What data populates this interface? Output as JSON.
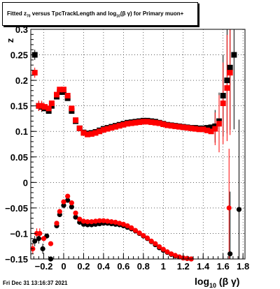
{
  "title": {
    "prefix": "Fitted  z",
    "sub1": "70",
    "middle": "  versus TpcTrackLength and log",
    "sub2": "10",
    "suffix": "(β  γ) for Primary muon+"
  },
  "footer": "Fri Dec 31 13:16:37 2021",
  "chart_data": {
    "type": "scatter",
    "title": "Fitted z70 versus TpcTrackLength and log10(β γ) for Primary muon+",
    "xlabel": "log10(β γ)",
    "ylabel": "z",
    "xlim": [
      -0.33,
      1.82
    ],
    "ylim": [
      -0.15,
      0.3
    ],
    "grid": true,
    "x_ticks": [
      -0.2,
      0,
      0.2,
      0.4,
      0.6,
      0.8,
      1,
      1.2,
      1.4,
      1.6,
      1.8
    ],
    "x_tick_labels": [
      "−0.2",
      "0",
      "0.2",
      "0.4",
      "0.6",
      "0.8",
      "1",
      "1.2",
      "1.4",
      "1.6",
      "1.8"
    ],
    "y_ticks": [
      -0.15,
      -0.1,
      -0.05,
      0,
      0.05,
      0.1,
      0.15,
      0.2,
      0.25,
      0.3
    ],
    "y_tick_labels": [
      "−0.15",
      "−0.1",
      "−0.05",
      "0",
      "0.05",
      "0.1",
      "0.15",
      "0.2",
      "0.25",
      "0.3"
    ],
    "series": [
      {
        "marker": "square",
        "color": "#000000",
        "points": [
          [
            -0.29,
            0.25
          ],
          [
            -0.25,
            0.15
          ],
          [
            -0.22,
            0.148
          ],
          [
            -0.19,
            0.145
          ],
          [
            -0.15,
            0.14
          ],
          [
            -0.12,
            0.15
          ],
          [
            -0.07,
            0.168
          ],
          [
            -0.04,
            0.177
          ],
          [
            0.0,
            0.177
          ],
          [
            0.04,
            0.165
          ],
          [
            0.08,
            0.14
          ],
          [
            0.12,
            0.12
          ],
          [
            0.16,
            0.106
          ],
          [
            0.2,
            0.098
          ],
          [
            0.24,
            0.096
          ],
          [
            0.28,
            0.097
          ],
          [
            0.32,
            0.099
          ],
          [
            0.36,
            0.102
          ],
          [
            0.4,
            0.105
          ],
          [
            0.44,
            0.107
          ],
          [
            0.48,
            0.109
          ],
          [
            0.52,
            0.111
          ],
          [
            0.56,
            0.113
          ],
          [
            0.6,
            0.115
          ],
          [
            0.64,
            0.117
          ],
          [
            0.68,
            0.118
          ],
          [
            0.72,
            0.119
          ],
          [
            0.76,
            0.12
          ],
          [
            0.8,
            0.121
          ],
          [
            0.84,
            0.121
          ],
          [
            0.88,
            0.12
          ],
          [
            0.92,
            0.119
          ],
          [
            0.96,
            0.117
          ],
          [
            1.0,
            0.115
          ],
          [
            1.04,
            0.113
          ],
          [
            1.08,
            0.112
          ],
          [
            1.12,
            0.111
          ],
          [
            1.16,
            0.11
          ],
          [
            1.2,
            0.109
          ],
          [
            1.24,
            0.108
          ],
          [
            1.28,
            0.107
          ],
          [
            1.32,
            0.107
          ],
          [
            1.36,
            0.106
          ],
          [
            1.4,
            0.106
          ],
          [
            1.44,
            0.107
          ],
          [
            1.48,
            0.108
          ],
          [
            1.52,
            0.11
          ],
          [
            1.56,
            0.12
          ],
          [
            1.6,
            0.17
          ],
          [
            1.64,
            0.2
          ],
          [
            1.67,
            0.225
          ],
          [
            1.71,
            0.25
          ]
        ]
      },
      {
        "marker": "square",
        "color": "#ff0000",
        "points": [
          [
            -0.29,
            0.215
          ],
          [
            -0.25,
            0.15
          ],
          [
            -0.22,
            0.15
          ],
          [
            -0.19,
            0.148
          ],
          [
            -0.15,
            0.145
          ],
          [
            -0.12,
            0.155
          ],
          [
            -0.07,
            0.172
          ],
          [
            -0.04,
            0.182
          ],
          [
            0.0,
            0.182
          ],
          [
            0.04,
            0.17
          ],
          [
            0.08,
            0.145
          ],
          [
            0.12,
            0.122
          ],
          [
            0.16,
            0.106
          ],
          [
            0.2,
            0.097
          ],
          [
            0.24,
            0.094
          ],
          [
            0.28,
            0.095
          ],
          [
            0.32,
            0.097
          ],
          [
            0.36,
            0.1
          ],
          [
            0.4,
            0.103
          ],
          [
            0.44,
            0.105
          ],
          [
            0.48,
            0.107
          ],
          [
            0.52,
            0.109
          ],
          [
            0.56,
            0.111
          ],
          [
            0.6,
            0.113
          ],
          [
            0.64,
            0.115
          ],
          [
            0.68,
            0.116
          ],
          [
            0.72,
            0.117
          ],
          [
            0.76,
            0.118
          ],
          [
            0.8,
            0.119
          ],
          [
            0.84,
            0.119
          ],
          [
            0.88,
            0.118
          ],
          [
            0.92,
            0.117
          ],
          [
            0.96,
            0.116
          ],
          [
            1.0,
            0.114
          ],
          [
            1.04,
            0.112
          ],
          [
            1.08,
            0.111
          ],
          [
            1.12,
            0.11
          ],
          [
            1.16,
            0.109
          ],
          [
            1.2,
            0.108
          ],
          [
            1.24,
            0.107
          ],
          [
            1.28,
            0.106
          ],
          [
            1.32,
            0.105
          ],
          [
            1.36,
            0.104
          ],
          [
            1.4,
            0.104
          ],
          [
            1.44,
            0.102
          ],
          [
            1.48,
            0.1
          ],
          [
            1.52,
            0.105
          ],
          [
            1.56,
            0.115
          ],
          [
            1.6,
            0.155
          ],
          [
            1.64,
            0.185
          ],
          [
            1.67,
            0.215
          ]
        ]
      },
      {
        "marker": "circle",
        "color": "#000000",
        "points": [
          [
            -0.29,
            -0.115
          ],
          [
            -0.25,
            -0.11
          ],
          [
            -0.21,
            -0.13
          ],
          [
            -0.17,
            -0.105
          ],
          [
            -0.13,
            -0.15
          ],
          [
            -0.07,
            -0.085
          ],
          [
            -0.04,
            -0.063
          ],
          [
            0.0,
            -0.045
          ],
          [
            0.04,
            -0.035
          ],
          [
            0.08,
            -0.048
          ],
          [
            0.12,
            -0.068
          ],
          [
            0.16,
            -0.078
          ],
          [
            0.2,
            -0.082
          ],
          [
            0.24,
            -0.083
          ],
          [
            0.28,
            -0.083
          ],
          [
            0.32,
            -0.082
          ],
          [
            0.36,
            -0.081
          ],
          [
            0.4,
            -0.08
          ],
          [
            0.44,
            -0.08
          ],
          [
            0.48,
            -0.081
          ],
          [
            0.52,
            -0.082
          ],
          [
            0.56,
            -0.083
          ],
          [
            0.6,
            -0.085
          ],
          [
            0.64,
            -0.088
          ],
          [
            0.68,
            -0.091
          ],
          [
            0.72,
            -0.095
          ],
          [
            0.76,
            -0.1
          ],
          [
            0.8,
            -0.105
          ],
          [
            0.84,
            -0.11
          ],
          [
            0.88,
            -0.116
          ],
          [
            0.92,
            -0.122
          ],
          [
            0.96,
            -0.128
          ],
          [
            1.0,
            -0.133
          ],
          [
            1.04,
            -0.137
          ],
          [
            1.08,
            -0.141
          ],
          [
            1.12,
            -0.144
          ],
          [
            1.16,
            -0.146
          ],
          [
            1.2,
            -0.148
          ],
          [
            1.24,
            -0.149
          ],
          [
            1.28,
            -0.15
          ],
          [
            1.67,
            -0.14
          ],
          [
            1.76,
            -0.053
          ]
        ]
      },
      {
        "marker": "circle",
        "color": "#ff0000",
        "points": [
          [
            -0.31,
            -0.13
          ],
          [
            -0.27,
            -0.1
          ],
          [
            -0.24,
            -0.1
          ],
          [
            -0.2,
            -0.11
          ],
          [
            -0.13,
            -0.12
          ],
          [
            -0.07,
            -0.08
          ],
          [
            -0.04,
            -0.057
          ],
          [
            0.0,
            -0.038
          ],
          [
            0.04,
            -0.027
          ],
          [
            0.08,
            -0.04
          ],
          [
            0.12,
            -0.06
          ],
          [
            0.16,
            -0.072
          ],
          [
            0.2,
            -0.076
          ],
          [
            0.24,
            -0.077
          ],
          [
            0.28,
            -0.077
          ],
          [
            0.32,
            -0.076
          ],
          [
            0.36,
            -0.075
          ],
          [
            0.4,
            -0.075
          ],
          [
            0.44,
            -0.076
          ],
          [
            0.48,
            -0.077
          ],
          [
            0.52,
            -0.078
          ],
          [
            0.56,
            -0.08
          ],
          [
            0.6,
            -0.082
          ],
          [
            0.64,
            -0.085
          ],
          [
            0.68,
            -0.089
          ],
          [
            0.72,
            -0.094
          ],
          [
            0.76,
            -0.099
          ],
          [
            0.8,
            -0.104
          ],
          [
            0.84,
            -0.109
          ],
          [
            0.88,
            -0.115
          ],
          [
            0.92,
            -0.12
          ],
          [
            0.96,
            -0.126
          ],
          [
            1.0,
            -0.131
          ],
          [
            1.04,
            -0.136
          ],
          [
            1.08,
            -0.14
          ],
          [
            1.12,
            -0.143
          ],
          [
            1.16,
            -0.146
          ],
          [
            1.2,
            -0.148
          ],
          [
            1.24,
            -0.149
          ],
          [
            1.28,
            -0.15
          ],
          [
            1.66,
            -0.05
          ]
        ]
      }
    ]
  }
}
